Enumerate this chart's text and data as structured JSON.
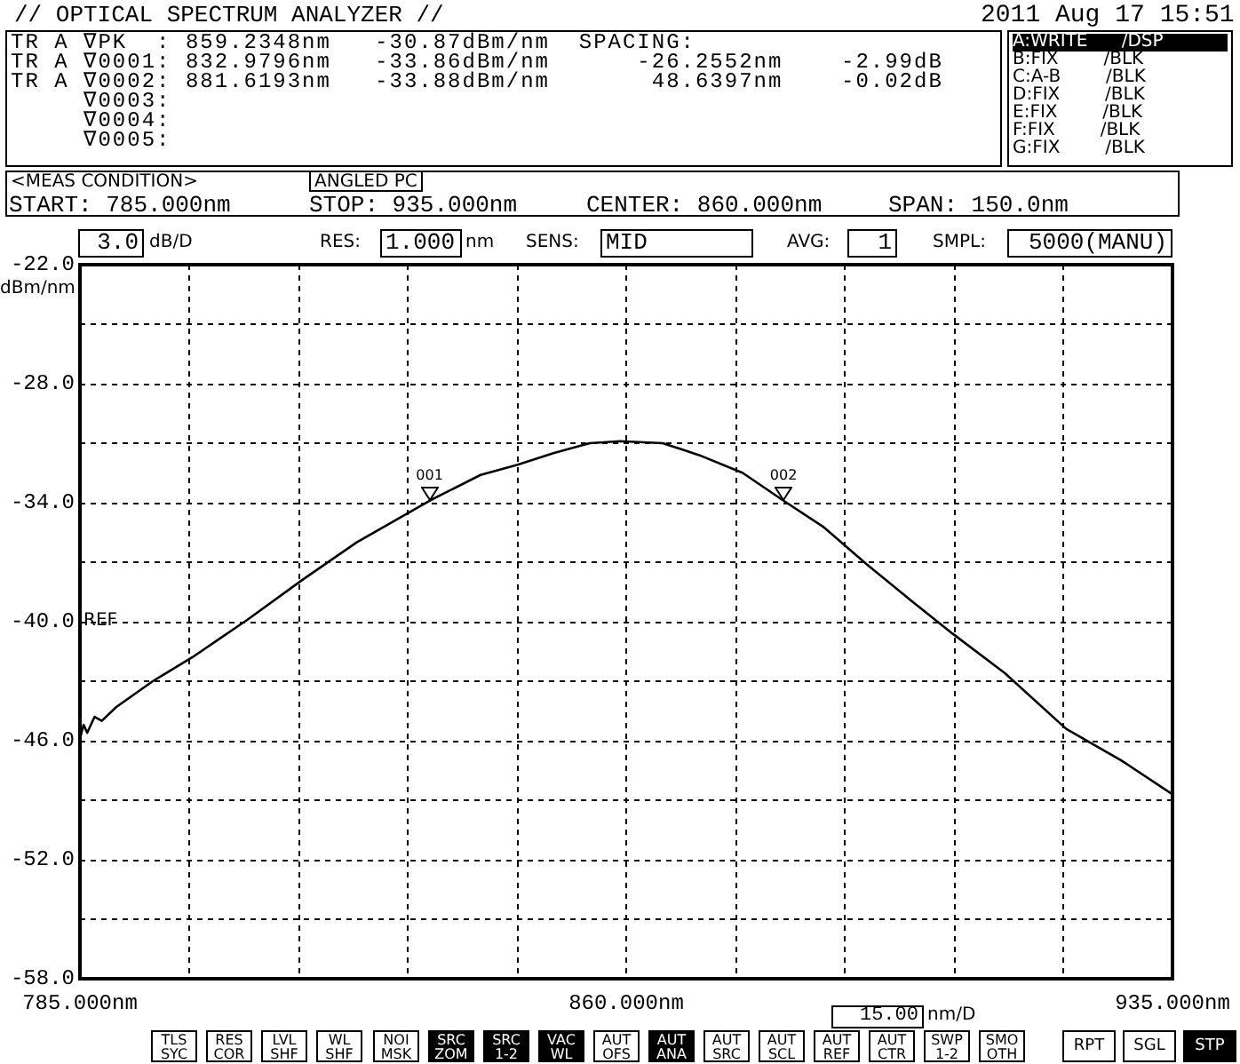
{
  "chart_data": {
    "type": "line",
    "title": "// OPTICAL SPECTRUM ANALYZER //",
    "ylabel": "dBm/nm",
    "x": [
      785,
      785.5,
      786,
      787,
      788,
      790,
      795,
      800.4,
      808,
      815.5,
      823,
      833.0,
      840,
      845,
      850,
      855,
      859.2,
      865,
      870,
      876,
      881.6,
      887,
      893,
      899,
      904.8,
      912,
      920.4,
      928,
      935
    ],
    "series": [
      {
        "color": "#000000",
        "values": [
          -45.9,
          -45.2,
          -45.6,
          -44.8,
          -45.0,
          -44.3,
          -43.0,
          -41.8,
          -39.9,
          -37.9,
          -36.0,
          -33.9,
          -32.6,
          -32.1,
          -31.5,
          -31.0,
          -30.9,
          -31.0,
          -31.6,
          -32.5,
          -33.9,
          -35.2,
          -37.1,
          -38.9,
          -40.6,
          -42.6,
          -45.4,
          -47.0,
          -48.7
        ]
      }
    ],
    "xlim": [
      785,
      935
    ],
    "xticks": [
      {
        "value": 785,
        "label": "785.000nm"
      },
      {
        "value": 800,
        "label": null
      },
      {
        "value": 815,
        "label": null
      },
      {
        "value": 830,
        "label": null
      },
      {
        "value": 845,
        "label": null
      },
      {
        "value": 860,
        "label": "860.000nm"
      },
      {
        "value": 875,
        "label": null
      },
      {
        "value": 890,
        "label": null
      },
      {
        "value": 905,
        "label": null
      },
      {
        "value": 920,
        "label": null
      },
      {
        "value": 935,
        "label": "935.000nm"
      }
    ],
    "ylim": [
      -58,
      -22
    ],
    "yticks": [
      {
        "value": -22,
        "label": "-22.0"
      },
      {
        "value": -25,
        "label": null
      },
      {
        "value": -28,
        "label": "-28.0"
      },
      {
        "value": -31,
        "label": null
      },
      {
        "value": -34,
        "label": "-34.0"
      },
      {
        "value": -37,
        "label": null
      },
      {
        "value": -40,
        "label": "-40.0"
      },
      {
        "value": -43,
        "label": null
      },
      {
        "value": -46,
        "label": "-46.0"
      },
      {
        "value": -49,
        "label": null
      },
      {
        "value": -52,
        "label": "-52.0"
      },
      {
        "value": -55,
        "label": null
      },
      {
        "value": -58,
        "label": "-58.0"
      }
    ],
    "grid": true,
    "marker": "none",
    "line_style": "solid",
    "annotations": [
      "2011 Aug 17 15:51",
      "TR A ∇PK  : 859.2348nm   -30.87dBm/nm  SPACING:",
      "TR A ∇0001: 832.9796nm   -33.86dBm/nm      -26.2552nm    -2.99dB",
      "TR A ∇0002: 881.6193nm   -33.88dBm/nm       48.6397nm    -0.02dB",
      "     ∇0003:",
      "     ∇0004:",
      "     ∇0005:",
      "A:WRITE      /DSP",
      "B:FIX        /BLK",
      "C:A-B        /BLK",
      "D:FIX        /BLK",
      "E:FIX        /BLK",
      "F:FIX        /BLK",
      "G:FIX        /BLK",
      "<MEAS CONDITION>",
      "ANGLED PC",
      "START: 785.000nm",
      "STOP: 935.000nm",
      "CENTER: 860.000nm",
      "SPAN: 150.0nm",
      "3.0",
      "dB/D",
      "RES:",
      "1.000",
      "nm",
      "SENS:",
      "MID",
      "AVG:",
      "1",
      "SMPL:",
      "5000(MANU)",
      "REF",
      "15.00",
      "nm/D",
      {
        "text": "001",
        "x": 833.0,
        "y": -33.9
      },
      {
        "text": "002",
        "x": 881.6,
        "y": -33.9
      },
      "TLS\nSYC",
      "RES\nCOR",
      "LVL\nSHF",
      "WL\nSHF",
      "NOI\nMSK",
      "SRC\nZOM",
      "SRC\n1-2",
      "VAC\nWL",
      "AUT\nOFS",
      "AUT\nANA",
      "AUT\nSRC",
      "AUT\nSCL",
      "AUT\nREF",
      "AUT\nCTR",
      "SWP\n1-2",
      "SMO\nOTH",
      "RPT",
      "SGL",
      "STP"
    ]
  }
}
